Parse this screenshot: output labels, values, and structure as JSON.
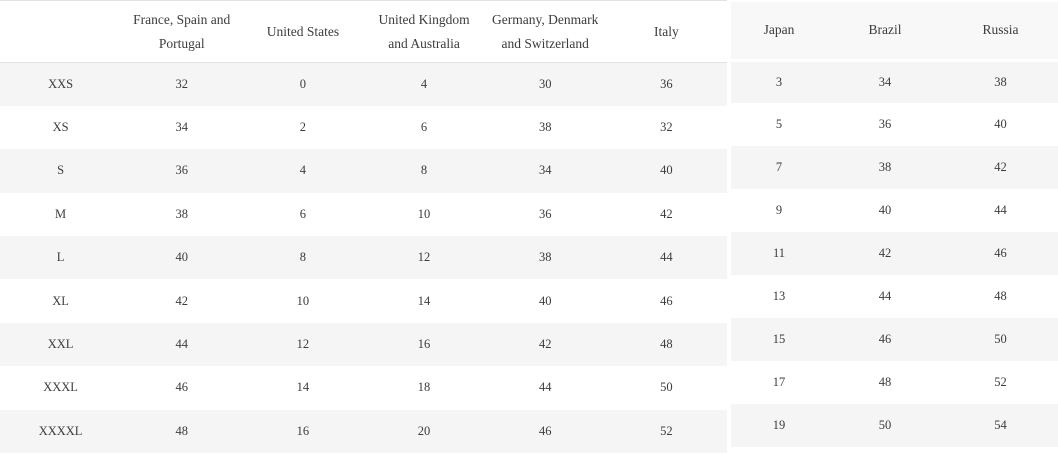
{
  "colors": {
    "stripe": "#f5f5f5",
    "header_border": "#e2e2e2",
    "right_header_bg": "#f8f8f8",
    "text": "#3c3c3c",
    "background": "#ffffff"
  },
  "left_table": {
    "headers": [
      "",
      "France, Spain and\nPortugal",
      "United States",
      "United Kingdom\nand Australia",
      "Germany, Denmark\nand Switzerland",
      "Italy"
    ],
    "rows": [
      {
        "label": "XXS",
        "values": [
          "32",
          "0",
          "4",
          "30",
          "36"
        ]
      },
      {
        "label": "XS",
        "values": [
          "34",
          "2",
          "6",
          "38",
          "32"
        ]
      },
      {
        "label": "S",
        "values": [
          "36",
          "4",
          "8",
          "34",
          "40"
        ]
      },
      {
        "label": "M",
        "values": [
          "38",
          "6",
          "10",
          "36",
          "42"
        ]
      },
      {
        "label": "L",
        "values": [
          "40",
          "8",
          "12",
          "38",
          "44"
        ]
      },
      {
        "label": "XL",
        "values": [
          "42",
          "10",
          "14",
          "40",
          "46"
        ]
      },
      {
        "label": "XXL",
        "values": [
          "44",
          "12",
          "16",
          "42",
          "48"
        ]
      },
      {
        "label": "XXXL",
        "values": [
          "46",
          "14",
          "18",
          "44",
          "50"
        ]
      },
      {
        "label": "XXXXL",
        "values": [
          "48",
          "16",
          "20",
          "46",
          "52"
        ]
      }
    ]
  },
  "right_table": {
    "headers": [
      "Japan",
      "Brazil",
      "Russia"
    ],
    "rows": [
      [
        "3",
        "34",
        "38"
      ],
      [
        "5",
        "36",
        "40"
      ],
      [
        "7",
        "38",
        "42"
      ],
      [
        "9",
        "40",
        "44"
      ],
      [
        "11",
        "42",
        "46"
      ],
      [
        "13",
        "44",
        "48"
      ],
      [
        "15",
        "46",
        "50"
      ],
      [
        "17",
        "48",
        "52"
      ],
      [
        "19",
        "50",
        "54"
      ]
    ]
  }
}
